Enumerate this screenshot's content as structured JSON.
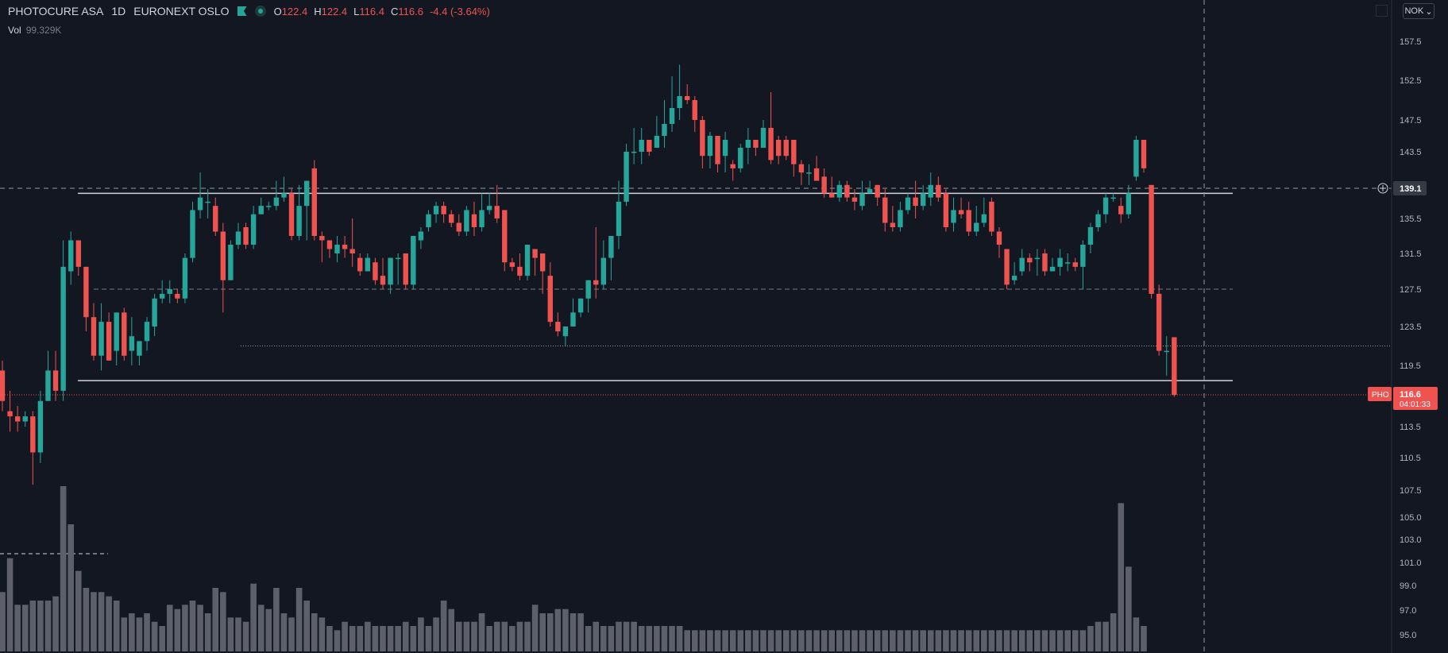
{
  "legend": {
    "symbol": "PHOTOCURE ASA",
    "interval": "1D",
    "exchange": "EURONEXT OSLO",
    "open_label": "O",
    "open": "122.4",
    "high_label": "H",
    "high": "122.4",
    "low_label": "L",
    "low": "116.4",
    "close_label": "C",
    "close": "116.6",
    "change": "-4.4 (-3.64%)",
    "vol_label": "Vol",
    "vol_value": "99.329K"
  },
  "currency": "NOK",
  "crosshair_price": "139.1",
  "last_price": {
    "ticker": "PHO",
    "price": "116.6",
    "countdown": "04:01:33"
  },
  "colors": {
    "up": "#26a69a",
    "down": "#ef5350",
    "volume": "#5d606b",
    "background": "#131722"
  },
  "chart_data": {
    "type": "candlestick",
    "price_axis_ticks": [
      157.5,
      152.5,
      147.5,
      143.5,
      139.1,
      135.5,
      131.5,
      127.5,
      123.5,
      119.5,
      116.6,
      113.5,
      110.5,
      107.5,
      105.0,
      103.0,
      101.0,
      99.0,
      97.0,
      95.0
    ],
    "horizontal_levels": [
      {
        "price": 138.5,
        "style": "solid"
      },
      {
        "price": 118.0,
        "style": "solid"
      },
      {
        "price": 127.5,
        "style": "dashed"
      },
      {
        "price": 121.5,
        "style": "dotted"
      }
    ],
    "candles": [
      [
        119.0,
        116.0,
        120.0,
        115.0
      ],
      [
        115.0,
        114.5,
        117.0,
        113.0
      ],
      [
        114.5,
        114.0,
        115.5,
        113.0
      ],
      [
        114.0,
        114.5,
        115.0,
        113.5
      ],
      [
        114.5,
        111.0,
        115.0,
        108.0
      ],
      [
        111.0,
        116.0,
        117.0,
        110.0
      ],
      [
        116.0,
        119.0,
        121.0,
        116.0
      ],
      [
        119.0,
        117.0,
        121.0,
        116.0
      ],
      [
        117.0,
        130.0,
        133.0,
        116.0
      ],
      [
        129.5,
        133.0,
        134.0,
        128.0
      ],
      [
        133.0,
        130.0,
        133.0,
        129.0
      ],
      [
        130.0,
        124.5,
        130.0,
        123.0
      ],
      [
        124.5,
        120.5,
        126.0,
        120.0
      ],
      [
        120.5,
        124.0,
        126.0,
        119.0
      ],
      [
        124.0,
        120.0,
        125.0,
        120.0
      ],
      [
        121.0,
        125.0,
        125.0,
        119.5
      ],
      [
        125.0,
        120.5,
        125.5,
        120.0
      ],
      [
        121.0,
        122.5,
        124.5,
        119.5
      ],
      [
        120.5,
        122.0,
        122.0,
        119.5
      ],
      [
        122.0,
        124.0,
        124.5,
        121.0
      ],
      [
        123.5,
        126.5,
        127.0,
        122.5
      ],
      [
        126.5,
        127.0,
        128.5,
        126.0
      ],
      [
        127.0,
        127.5,
        128.5,
        126.0
      ],
      [
        127.0,
        126.5,
        127.5,
        126.0
      ],
      [
        126.5,
        131.0,
        131.5,
        126.0
      ],
      [
        131.0,
        136.5,
        137.5,
        130.5
      ],
      [
        136.5,
        138.0,
        141.0,
        135.5
      ],
      [
        137.5,
        137.5,
        139.0,
        135.5
      ],
      [
        137.0,
        134.0,
        138.0,
        133.5
      ],
      [
        134.0,
        128.5,
        135.0,
        125.0
      ],
      [
        128.5,
        132.5,
        133.0,
        128.5
      ],
      [
        132.5,
        134.0,
        135.0,
        132.0
      ],
      [
        134.5,
        132.5,
        135.0,
        132.0
      ],
      [
        132.5,
        136.0,
        137.0,
        132.0
      ],
      [
        136.0,
        137.0,
        138.0,
        136.0
      ],
      [
        137.0,
        137.0,
        137.5,
        136.5
      ],
      [
        137.0,
        138.0,
        140.0,
        136.5
      ],
      [
        138.0,
        138.5,
        140.5,
        137.5
      ],
      [
        138.5,
        133.5,
        139.0,
        133.0
      ],
      [
        133.5,
        137.0,
        139.5,
        133.0
      ],
      [
        137.0,
        140.0,
        140.0,
        133.0
      ],
      [
        141.5,
        133.5,
        142.5,
        133.0
      ],
      [
        133.5,
        133.0,
        134.0,
        130.5
      ],
      [
        133.0,
        132.0,
        133.0,
        131.0
      ],
      [
        131.5,
        132.5,
        133.5,
        130.5
      ],
      [
        132.5,
        132.0,
        133.5,
        131.0
      ],
      [
        132.0,
        131.5,
        135.5,
        130.0
      ],
      [
        131.0,
        129.5,
        131.5,
        129.0
      ],
      [
        129.5,
        131.0,
        131.5,
        129.5
      ],
      [
        130.5,
        128.5,
        131.0,
        128.0
      ],
      [
        129.0,
        128.0,
        131.0,
        127.5
      ],
      [
        128.0,
        131.0,
        131.0,
        127.0
      ],
      [
        131.0,
        131.0,
        131.5,
        128.0
      ],
      [
        131.5,
        128.0,
        131.5,
        127.5
      ],
      [
        128.0,
        133.5,
        133.5,
        127.5
      ],
      [
        133.0,
        134.0,
        134.5,
        132.0
      ],
      [
        134.5,
        136.0,
        136.5,
        134.0
      ],
      [
        136.0,
        137.0,
        137.5,
        135.0
      ],
      [
        137.0,
        136.0,
        137.5,
        135.0
      ],
      [
        136.0,
        135.0,
        136.5,
        134.5
      ],
      [
        135.0,
        134.0,
        136.0,
        133.5
      ],
      [
        134.0,
        136.5,
        137.0,
        133.5
      ],
      [
        136.0,
        134.5,
        137.5,
        133.5
      ],
      [
        134.5,
        136.5,
        138.5,
        134.0
      ],
      [
        136.5,
        137.0,
        138.5,
        136.0
      ],
      [
        137.0,
        135.5,
        139.5,
        135.0
      ],
      [
        136.5,
        130.5,
        136.5,
        129.5
      ],
      [
        130.5,
        130.0,
        131.0,
        129.5
      ],
      [
        130.0,
        129.0,
        131.5,
        128.5
      ],
      [
        129.0,
        132.5,
        132.5,
        128.5
      ],
      [
        132.0,
        131.0,
        132.0,
        129.0
      ],
      [
        131.5,
        129.5,
        131.5,
        127.0
      ],
      [
        129.0,
        124.0,
        130.5,
        123.5
      ],
      [
        124.0,
        123.0,
        125.0,
        122.5
      ],
      [
        122.5,
        123.5,
        123.5,
        121.5
      ],
      [
        123.5,
        125.0,
        126.5,
        123.5
      ],
      [
        125.0,
        126.5,
        126.5,
        124.5
      ],
      [
        126.5,
        128.5,
        128.5,
        125.0
      ],
      [
        128.5,
        128.0,
        134.5,
        126.5
      ],
      [
        128.0,
        131.0,
        133.0,
        127.5
      ],
      [
        131.0,
        133.5,
        133.5,
        128.5
      ],
      [
        133.5,
        137.5,
        140.0,
        132.0
      ],
      [
        137.5,
        143.5,
        144.5,
        137.0
      ],
      [
        143.5,
        143.5,
        146.5,
        142.0
      ],
      [
        143.5,
        145.0,
        146.5,
        142.0
      ],
      [
        145.0,
        143.5,
        145.0,
        143.0
      ],
      [
        144.0,
        145.5,
        148.0,
        144.0
      ],
      [
        145.5,
        147.0,
        150.0,
        144.0
      ],
      [
        147.0,
        149.0,
        153.0,
        146.0
      ],
      [
        149.0,
        150.5,
        154.5,
        147.5
      ],
      [
        150.5,
        150.0,
        152.0,
        149.5
      ],
      [
        150.0,
        147.5,
        150.5,
        146.0
      ],
      [
        147.5,
        143.0,
        148.0,
        141.5
      ],
      [
        143.0,
        145.5,
        146.0,
        141.5
      ],
      [
        145.5,
        142.0,
        145.5,
        141.0
      ],
      [
        143.0,
        145.0,
        146.0,
        141.0
      ],
      [
        142.0,
        141.5,
        142.5,
        140.0
      ],
      [
        141.5,
        144.0,
        144.5,
        141.0
      ],
      [
        144.0,
        145.0,
        146.5,
        142.0
      ],
      [
        145.0,
        144.0,
        145.0,
        143.0
      ],
      [
        144.0,
        146.5,
        147.5,
        144.0
      ],
      [
        146.5,
        142.5,
        151.0,
        142.0
      ],
      [
        145.0,
        143.0,
        145.5,
        142.0
      ],
      [
        145.0,
        143.0,
        145.5,
        142.5
      ],
      [
        145.0,
        142.0,
        145.0,
        140.5
      ],
      [
        142.0,
        141.0,
        142.5,
        139.5
      ],
      [
        141.0,
        141.0,
        142.0,
        139.5
      ],
      [
        141.5,
        140.0,
        143.0,
        140.0
      ],
      [
        140.5,
        138.5,
        141.5,
        138.0
      ],
      [
        138.5,
        138.0,
        140.5,
        138.0
      ],
      [
        138.0,
        139.5,
        140.0,
        137.5
      ],
      [
        139.5,
        138.0,
        140.0,
        137.5
      ],
      [
        138.0,
        137.5,
        139.0,
        136.5
      ],
      [
        137.0,
        138.5,
        140.0,
        136.5
      ],
      [
        138.5,
        139.0,
        140.0,
        138.5
      ],
      [
        139.5,
        138.0,
        139.5,
        137.0
      ],
      [
        138.0,
        135.0,
        139.0,
        134.0
      ],
      [
        135.0,
        134.5,
        137.0,
        134.0
      ],
      [
        134.5,
        136.5,
        137.5,
        134.0
      ],
      [
        136.5,
        138.0,
        138.5,
        136.0
      ],
      [
        138.0,
        137.0,
        140.0,
        135.5
      ],
      [
        137.0,
        138.5,
        139.5,
        136.5
      ],
      [
        138.0,
        139.5,
        141.0,
        137.0
      ],
      [
        139.5,
        138.0,
        140.5,
        137.5
      ],
      [
        138.5,
        134.5,
        139.0,
        134.0
      ],
      [
        135.0,
        136.5,
        138.0,
        134.0
      ],
      [
        136.5,
        136.0,
        138.0,
        135.5
      ],
      [
        136.5,
        134.0,
        137.5,
        133.5
      ],
      [
        134.0,
        135.0,
        137.0,
        133.5
      ],
      [
        135.0,
        136.0,
        138.0,
        134.5
      ],
      [
        137.5,
        134.0,
        138.0,
        133.5
      ],
      [
        134.0,
        132.5,
        134.5,
        131.0
      ],
      [
        132.0,
        128.0,
        132.0,
        127.5
      ],
      [
        128.5,
        129.0,
        130.5,
        128.0
      ],
      [
        129.5,
        131.0,
        132.0,
        129.0
      ],
      [
        131.0,
        130.5,
        131.5,
        129.5
      ],
      [
        131.0,
        131.0,
        132.0,
        129.0
      ],
      [
        131.5,
        129.5,
        132.0,
        129.0
      ],
      [
        129.5,
        130.0,
        131.0,
        129.5
      ],
      [
        130.0,
        131.0,
        132.0,
        129.0
      ],
      [
        130.5,
        130.5,
        131.5,
        129.5
      ],
      [
        130.5,
        130.0,
        131.0,
        129.5
      ],
      [
        130.0,
        132.5,
        133.0,
        127.5
      ],
      [
        132.5,
        134.5,
        135.0,
        131.5
      ],
      [
        134.5,
        136.0,
        136.5,
        134.0
      ],
      [
        136.0,
        138.0,
        138.5,
        135.0
      ],
      [
        138.0,
        138.0,
        138.5,
        137.5
      ],
      [
        137.0,
        136.0,
        138.0,
        135.0
      ],
      [
        136.0,
        138.5,
        139.5,
        135.5
      ],
      [
        140.5,
        145.0,
        145.5,
        140.0
      ],
      [
        145.0,
        141.5,
        145.0,
        141.0
      ],
      [
        139.5,
        127.0,
        139.5,
        126.5
      ],
      [
        127.0,
        121.0,
        128.0,
        120.5
      ],
      [
        121.0,
        121.0,
        122.5,
        118.5
      ],
      [
        122.4,
        116.6,
        122.4,
        116.4
      ]
    ],
    "volumes": [
      14,
      22,
      11,
      11,
      12,
      12,
      12,
      13,
      39,
      30,
      19,
      15,
      14,
      14,
      13,
      12,
      8,
      9,
      8,
      9,
      7,
      6,
      11,
      10,
      11,
      12,
      11,
      9,
      15,
      14,
      8,
      8,
      7,
      16,
      11,
      10,
      15,
      9,
      8,
      15,
      12,
      9,
      8,
      6,
      5,
      7,
      6,
      6,
      7,
      6,
      6,
      6,
      6,
      7,
      6,
      8,
      6,
      8,
      12,
      10,
      7,
      7,
      7,
      9,
      6,
      7,
      7,
      6,
      7,
      7,
      11,
      9,
      9,
      10,
      10,
      9,
      9,
      6,
      7,
      6,
      6,
      7,
      7,
      7,
      6,
      6,
      6,
      6,
      6,
      6,
      5,
      5,
      5,
      5,
      5,
      5,
      5,
      5,
      5,
      5,
      5,
      5,
      5,
      5,
      5,
      5,
      5,
      5,
      5,
      5,
      5,
      5,
      5,
      5,
      5,
      5,
      5,
      5,
      5,
      5,
      5,
      5,
      5,
      5,
      5,
      5,
      5,
      5,
      5,
      5,
      5,
      5,
      5,
      5,
      5,
      5,
      5,
      5,
      5,
      5,
      5,
      5,
      5,
      6,
      7,
      7,
      9,
      35,
      20,
      8,
      6
    ]
  }
}
